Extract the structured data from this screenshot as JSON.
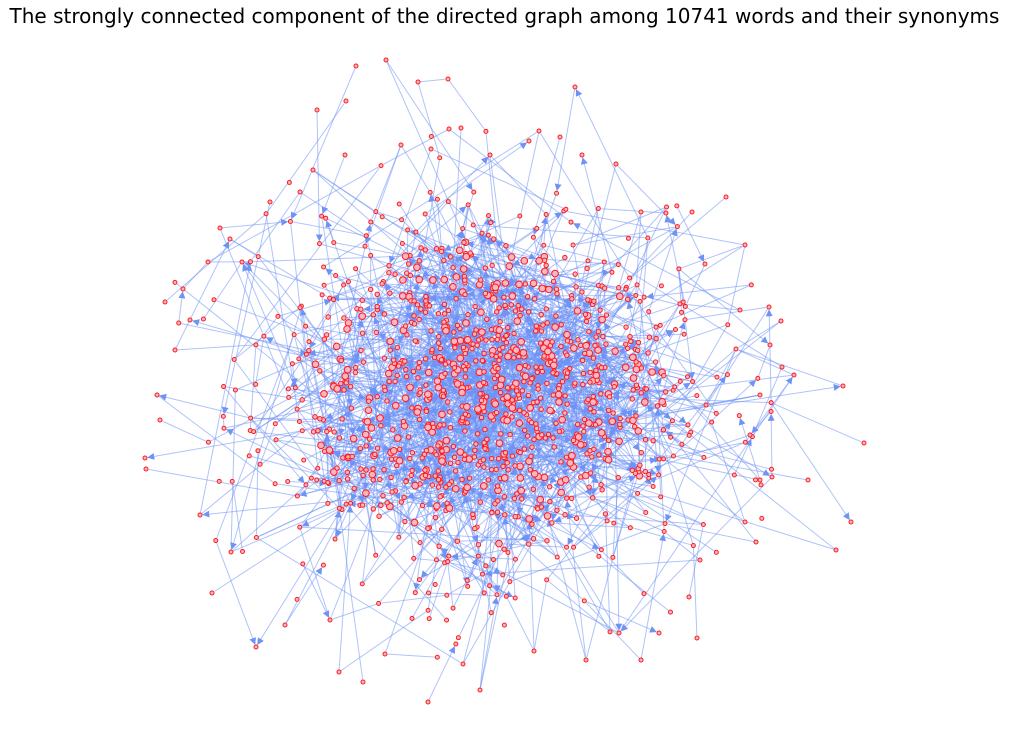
{
  "title": "The strongly connected component of the directed graph among 10741 words and their synonyms",
  "graph": {
    "type": "directed-network",
    "node_count_label": "10741",
    "colors": {
      "edge": "#6f93f5",
      "node_fill": "#f9b7c4",
      "node_stroke": "#ff1a1a",
      "background": "#ffffff"
    }
  }
}
